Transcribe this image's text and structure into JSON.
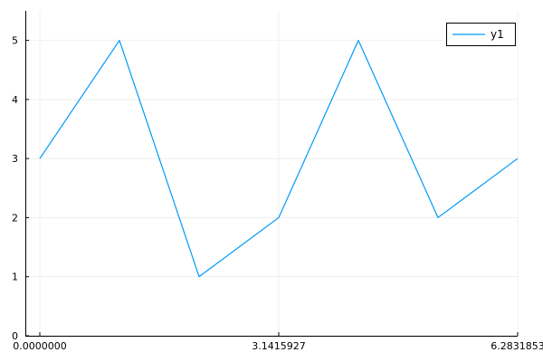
{
  "chart_data": {
    "type": "line",
    "title": "",
    "xlabel": "",
    "ylabel": "",
    "xlim": [
      0,
      6.2831853
    ],
    "ylim": [
      0,
      5.5
    ],
    "grid": true,
    "legend_position": "top-right",
    "x_ticks": [
      {
        "value": 0,
        "label": "0.0000000"
      },
      {
        "value": 3.1415927,
        "label": "3.1415927"
      },
      {
        "value": 6.2831853,
        "label": "6.2831853"
      }
    ],
    "y_ticks": [
      {
        "value": 0,
        "label": "0"
      },
      {
        "value": 1,
        "label": "1"
      },
      {
        "value": 2,
        "label": "2"
      },
      {
        "value": 3,
        "label": "3"
      },
      {
        "value": 4,
        "label": "4"
      },
      {
        "value": 5,
        "label": "5"
      }
    ],
    "series": [
      {
        "name": "y1",
        "color": "#009AFA",
        "x": [
          0,
          1.0472,
          2.0944,
          3.1416,
          4.1888,
          5.236,
          6.2832
        ],
        "y": [
          3,
          5,
          1,
          2,
          5,
          2,
          3
        ]
      }
    ]
  }
}
